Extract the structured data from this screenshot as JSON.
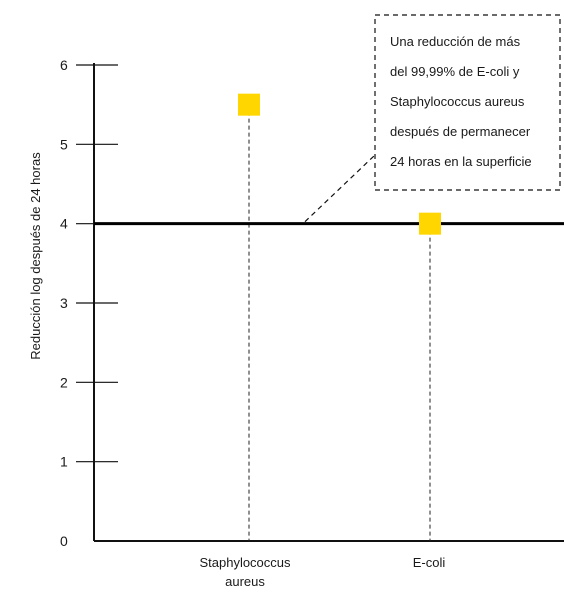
{
  "chart_data": {
    "type": "scatter",
    "title": "",
    "xlabel": "",
    "ylabel": "Reducción log después de 24 horas",
    "ylim": [
      0,
      6
    ],
    "yticks": [
      0,
      1,
      2,
      3,
      4,
      5,
      6
    ],
    "categories": [
      [
        "Staphylococcus",
        "aureus"
      ],
      [
        "E-coli"
      ]
    ],
    "values": [
      5.5,
      4.0
    ],
    "threshold": 4,
    "marker_color": "#FFD600",
    "annotation": {
      "lines": [
        "Una reducción de más",
        "del 99,99% de E-coli y",
        "Staphylococcus aureus",
        "después de permanecer",
        "24 horas en la superficie"
      ]
    },
    "grid": false,
    "legend": "none"
  }
}
